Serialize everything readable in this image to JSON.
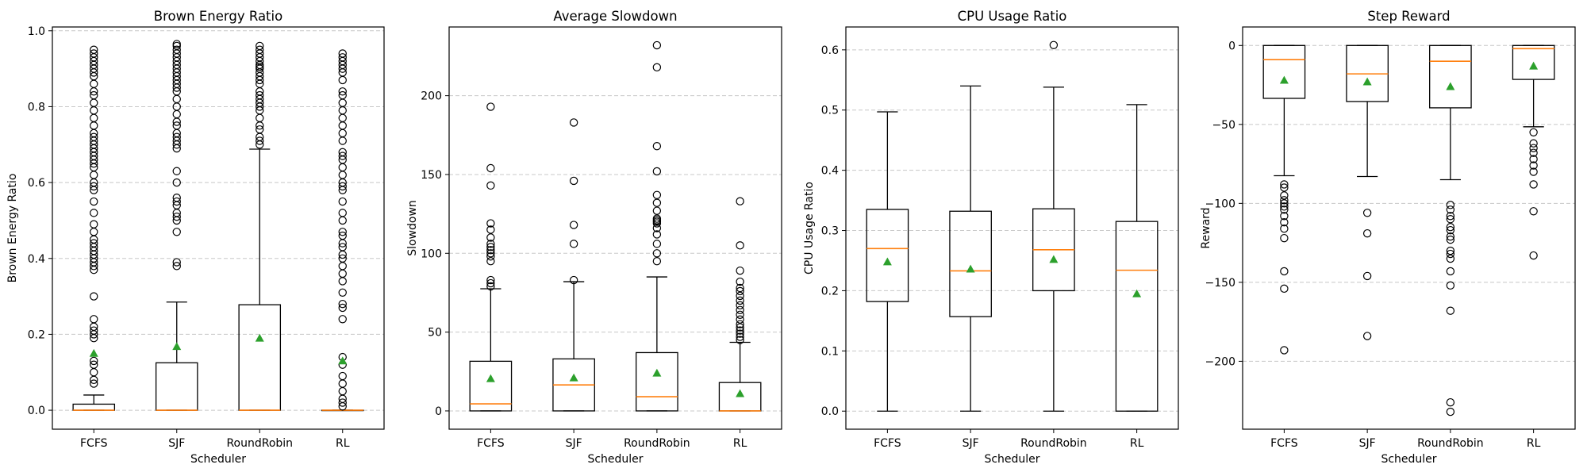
{
  "chart_data": [
    {
      "type": "box",
      "title": "Brown Energy Ratio",
      "xlabel": "Scheduler",
      "ylabel": "Brown Energy Ratio",
      "categories": [
        "FCFS",
        "SJF",
        "RoundRobin",
        "RL"
      ],
      "ylim": [
        -0.05,
        1.01
      ],
      "yticks": [
        0.0,
        0.2,
        0.4,
        0.6,
        0.8,
        1.0
      ],
      "ytick_labels": [
        "0.0",
        "0.2",
        "0.4",
        "0.6",
        "0.8",
        "1.0"
      ],
      "grid": "horizontal dashed",
      "boxes": [
        {
          "q1": 0.0,
          "median": 0.0,
          "q3": 0.016,
          "whisker_low": 0.0,
          "whisker_high": 0.04,
          "mean": 0.15,
          "outliers": [
            0.07,
            0.08,
            0.1,
            0.12,
            0.13,
            0.19,
            0.2,
            0.21,
            0.22,
            0.24,
            0.3,
            0.37,
            0.38,
            0.39,
            0.4,
            0.41,
            0.42,
            0.43,
            0.44,
            0.45,
            0.47,
            0.49,
            0.52,
            0.55,
            0.58,
            0.59,
            0.6,
            0.62,
            0.64,
            0.65,
            0.66,
            0.67,
            0.68,
            0.69,
            0.7,
            0.71,
            0.72,
            0.73,
            0.75,
            0.77,
            0.79,
            0.81,
            0.83,
            0.84,
            0.86,
            0.88,
            0.89,
            0.9,
            0.91,
            0.92,
            0.93,
            0.94,
            0.95
          ]
        },
        {
          "q1": 0.0,
          "median": 0.0,
          "q3": 0.125,
          "whisker_low": 0.0,
          "whisker_high": 0.285,
          "mean": 0.168,
          "outliers": [
            0.38,
            0.39,
            0.47,
            0.5,
            0.51,
            0.52,
            0.54,
            0.55,
            0.56,
            0.6,
            0.63,
            0.69,
            0.7,
            0.71,
            0.72,
            0.73,
            0.75,
            0.76,
            0.78,
            0.8,
            0.82,
            0.84,
            0.85,
            0.86,
            0.87,
            0.88,
            0.89,
            0.9,
            0.91,
            0.92,
            0.93,
            0.94,
            0.95,
            0.96,
            0.965
          ]
        },
        {
          "q1": 0.0,
          "median": 0.0,
          "q3": 0.278,
          "whisker_low": 0.0,
          "whisker_high": 0.688,
          "mean": 0.19,
          "outliers": [
            0.7,
            0.71,
            0.72,
            0.74,
            0.75,
            0.77,
            0.79,
            0.8,
            0.81,
            0.82,
            0.83,
            0.84,
            0.86,
            0.87,
            0.88,
            0.89,
            0.9,
            0.905,
            0.91,
            0.92,
            0.93,
            0.94,
            0.95,
            0.96
          ]
        },
        {
          "q1": 0.0,
          "median": 0.0,
          "q3": 0.0,
          "whisker_low": 0.0,
          "whisker_high": 0.0,
          "mean": 0.13,
          "outliers": [
            0.01,
            0.02,
            0.03,
            0.05,
            0.07,
            0.09,
            0.12,
            0.14,
            0.24,
            0.27,
            0.28,
            0.31,
            0.34,
            0.36,
            0.38,
            0.4,
            0.41,
            0.43,
            0.44,
            0.46,
            0.47,
            0.5,
            0.52,
            0.55,
            0.58,
            0.59,
            0.6,
            0.62,
            0.64,
            0.66,
            0.67,
            0.68,
            0.71,
            0.73,
            0.75,
            0.77,
            0.79,
            0.81,
            0.83,
            0.84,
            0.87,
            0.89,
            0.9,
            0.91,
            0.92,
            0.93,
            0.94
          ]
        }
      ]
    },
    {
      "type": "box",
      "title": "Average Slowdown",
      "xlabel": "Scheduler",
      "ylabel": "Slowdown",
      "categories": [
        "FCFS",
        "SJF",
        "RoundRobin",
        "RL"
      ],
      "ylim": [
        -11.6,
        243.6
      ],
      "yticks": [
        0,
        50,
        100,
        150,
        200
      ],
      "ytick_labels": [
        "0",
        "50",
        "100",
        "150",
        "200"
      ],
      "grid": "horizontal dashed",
      "boxes": [
        {
          "q1": 0.0,
          "median": 4.5,
          "q3": 31.5,
          "whisker_low": 0.0,
          "whisker_high": 77.5,
          "mean": 20.5,
          "outliers": [
            79,
            81,
            83,
            95,
            98,
            100,
            102,
            104,
            106,
            110,
            115,
            119,
            143,
            154,
            193
          ]
        },
        {
          "q1": 0.0,
          "median": 16.5,
          "q3": 33.0,
          "whisker_low": 0.0,
          "whisker_high": 82.0,
          "mean": 21.0,
          "outliers": [
            83,
            106,
            118,
            146,
            183
          ]
        },
        {
          "q1": 0.0,
          "median": 9.0,
          "q3": 37.0,
          "whisker_low": 0.0,
          "whisker_high": 85.0,
          "mean": 24.0,
          "outliers": [
            95,
            100,
            106,
            112,
            116,
            119,
            120,
            121,
            122,
            127,
            132,
            137,
            152,
            168,
            218,
            232
          ]
        },
        {
          "q1": 0.0,
          "median": 0.0,
          "q3": 18.0,
          "whisker_low": 0.0,
          "whisker_high": 43.5,
          "mean": 11.0,
          "outliers": [
            45,
            47,
            49,
            51,
            53,
            55,
            58,
            61,
            64,
            67,
            70,
            73,
            76,
            78,
            82,
            89,
            105,
            133
          ]
        }
      ]
    },
    {
      "type": "box",
      "title": "CPU Usage Ratio",
      "xlabel": "Scheduler",
      "ylabel": "CPU Usage Ratio",
      "categories": [
        "FCFS",
        "SJF",
        "RoundRobin",
        "RL"
      ],
      "ylim": [
        -0.03,
        0.638
      ],
      "yticks": [
        0.0,
        0.1,
        0.2,
        0.3,
        0.4,
        0.5,
        0.6
      ],
      "ytick_labels": [
        "0.0",
        "0.1",
        "0.2",
        "0.3",
        "0.4",
        "0.5",
        "0.6"
      ],
      "grid": "horizontal dashed",
      "boxes": [
        {
          "q1": 0.182,
          "median": 0.27,
          "q3": 0.335,
          "whisker_low": 0.0,
          "whisker_high": 0.497,
          "mean": 0.248,
          "outliers": []
        },
        {
          "q1": 0.157,
          "median": 0.233,
          "q3": 0.332,
          "whisker_low": 0.0,
          "whisker_high": 0.54,
          "mean": 0.236,
          "outliers": []
        },
        {
          "q1": 0.2,
          "median": 0.268,
          "q3": 0.336,
          "whisker_low": 0.0,
          "whisker_high": 0.538,
          "mean": 0.252,
          "outliers": [
            0.608
          ]
        },
        {
          "q1": 0.0,
          "median": 0.234,
          "q3": 0.315,
          "whisker_low": 0.0,
          "whisker_high": 0.509,
          "mean": 0.195,
          "outliers": []
        }
      ]
    },
    {
      "type": "box",
      "title": "Step Reward",
      "xlabel": "Scheduler",
      "ylabel": "Reward",
      "categories": [
        "FCFS",
        "SJF",
        "RoundRobin",
        "RL"
      ],
      "ylim": [
        -243,
        11.7
      ],
      "yticks": [
        -200,
        -150,
        -100,
        -50,
        0
      ],
      "ytick_labels": [
        "−200",
        "−150",
        "−100",
        "−50",
        "0"
      ],
      "grid": "horizontal dashed",
      "boxes": [
        {
          "q1": -33.5,
          "median": -9.0,
          "q3": 0.0,
          "whisker_low": -82.5,
          "whisker_high": 0.0,
          "mean": -22.0,
          "outliers": [
            -88,
            -90,
            -95,
            -98,
            -100,
            -102,
            -104,
            -108,
            -112,
            -116,
            -122,
            -143,
            -154,
            -193
          ]
        },
        {
          "q1": -35.5,
          "median": -18.0,
          "q3": 0.0,
          "whisker_low": -83.0,
          "whisker_high": 0.0,
          "mean": -23.0,
          "outliers": [
            -106,
            -119,
            -146,
            -184
          ]
        },
        {
          "q1": -39.5,
          "median": -10.0,
          "q3": 0.0,
          "whisker_low": -85.0,
          "whisker_high": 0.0,
          "mean": -26.0,
          "outliers": [
            -101,
            -104,
            -108,
            -110,
            -115,
            -117,
            -121,
            -123,
            -130,
            -132,
            -135,
            -143,
            -152,
            -168,
            -226,
            -232
          ]
        },
        {
          "q1": -21.5,
          "median": -2.0,
          "q3": 0.0,
          "whisker_low": -51.5,
          "whisker_high": 0.0,
          "mean": -13.0,
          "outliers": [
            -55,
            -62,
            -65,
            -68,
            -72,
            -76,
            -80,
            -88,
            -105,
            -133
          ]
        }
      ]
    }
  ]
}
